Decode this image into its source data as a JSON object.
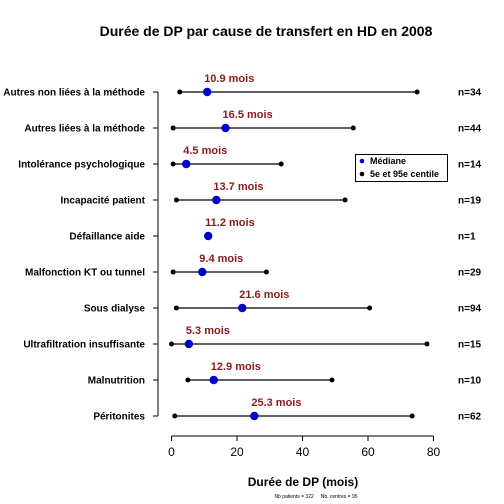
{
  "chart_data": {
    "type": "dot-range",
    "title": "Durée de DP par cause de transfert en HD en 2008",
    "xlabel": "Durée de DP (mois)",
    "xlim": [
      0,
      80
    ],
    "xticks": [
      0,
      20,
      40,
      60,
      80
    ],
    "legend": {
      "placement": "right",
      "entries": [
        {
          "label": "Médiane",
          "color": "#0000cd"
        },
        {
          "label": "5e et 95e centile",
          "color": "#000000"
        }
      ]
    },
    "footnote": "Nb patients = 322     Nb. centres = 95",
    "series": [
      {
        "category": "Autres non liées à la méthode",
        "p5": 2.5,
        "median": 10.9,
        "p95": 75,
        "median_label": "10.9 mois",
        "n_label": "n=34"
      },
      {
        "category": "Autres liées à la méthode",
        "p5": 0.5,
        "median": 16.5,
        "p95": 55.5,
        "median_label": "16.5 mois",
        "n_label": "n=44"
      },
      {
        "category": "Intolérance psychologique",
        "p5": 0.5,
        "median": 4.5,
        "p95": 33.5,
        "median_label": "4.5 mois",
        "n_label": "n=14"
      },
      {
        "category": "Incapacité patient",
        "p5": 1.5,
        "median": 13.7,
        "p95": 53,
        "median_label": "13.7 mois",
        "n_label": "n=19"
      },
      {
        "category": "Défaillance aide",
        "p5": 11.2,
        "median": 11.2,
        "p95": 11.2,
        "median_label": "11.2 mois",
        "n_label": "n=1"
      },
      {
        "category": "Malfonction KT ou tunnel",
        "p5": 0.5,
        "median": 9.4,
        "p95": 29,
        "median_label": "9.4 mois",
        "n_label": "n=29"
      },
      {
        "category": "Sous dialyse",
        "p5": 1.5,
        "median": 21.6,
        "p95": 60.5,
        "median_label": "21.6 mois",
        "n_label": "n=94"
      },
      {
        "category": "Ultrafiltration insuffisante",
        "p5": 0,
        "median": 5.3,
        "p95": 78,
        "median_label": "5.3 mois",
        "n_label": "n=15"
      },
      {
        "category": "Malnutrition",
        "p5": 5,
        "median": 12.9,
        "p95": 49,
        "median_label": "12.9 mois",
        "n_label": "n=10"
      },
      {
        "category": "Péritonites",
        "p5": 1,
        "median": 25.3,
        "p95": 73.5,
        "median_label": "25.3 mois",
        "n_label": "n=62"
      }
    ]
  }
}
